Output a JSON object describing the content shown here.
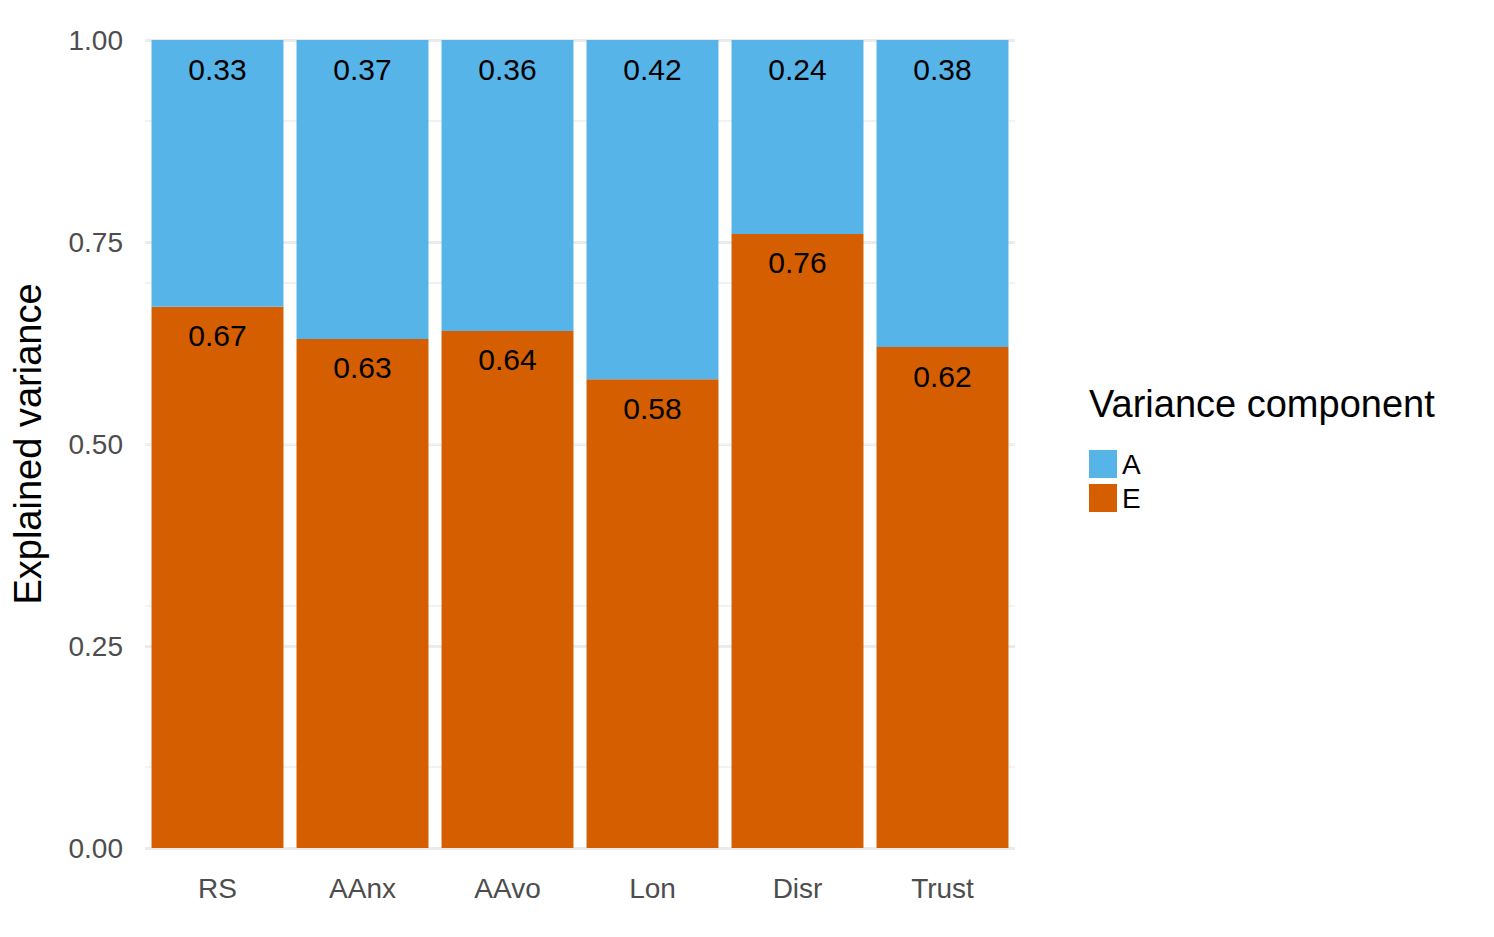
{
  "chart_data": {
    "type": "bar",
    "y_label": "Explained variance",
    "legend_title": "Variance component",
    "categories": [
      "RS",
      "AAnx",
      "AAvo",
      "Lon",
      "Disr",
      "Trust"
    ],
    "series": [
      {
        "name": "A",
        "color": "#56B4E9",
        "values": [
          0.33,
          0.37,
          0.36,
          0.42,
          0.24,
          0.38
        ]
      },
      {
        "name": "E",
        "color": "#D55E00",
        "values": [
          0.67,
          0.63,
          0.64,
          0.58,
          0.76,
          0.62
        ]
      }
    ],
    "ylim": [
      0,
      1
    ],
    "yticks": [
      {
        "value": 0,
        "label": "0.00"
      },
      {
        "value": 0.25,
        "label": "0.25"
      },
      {
        "value": 0.5,
        "label": "0.50"
      },
      {
        "value": 0.75,
        "label": "0.75"
      },
      {
        "value": 1,
        "label": "1.00"
      }
    ],
    "grid": true,
    "stacked": true,
    "data_labels": true,
    "legend": "right"
  }
}
